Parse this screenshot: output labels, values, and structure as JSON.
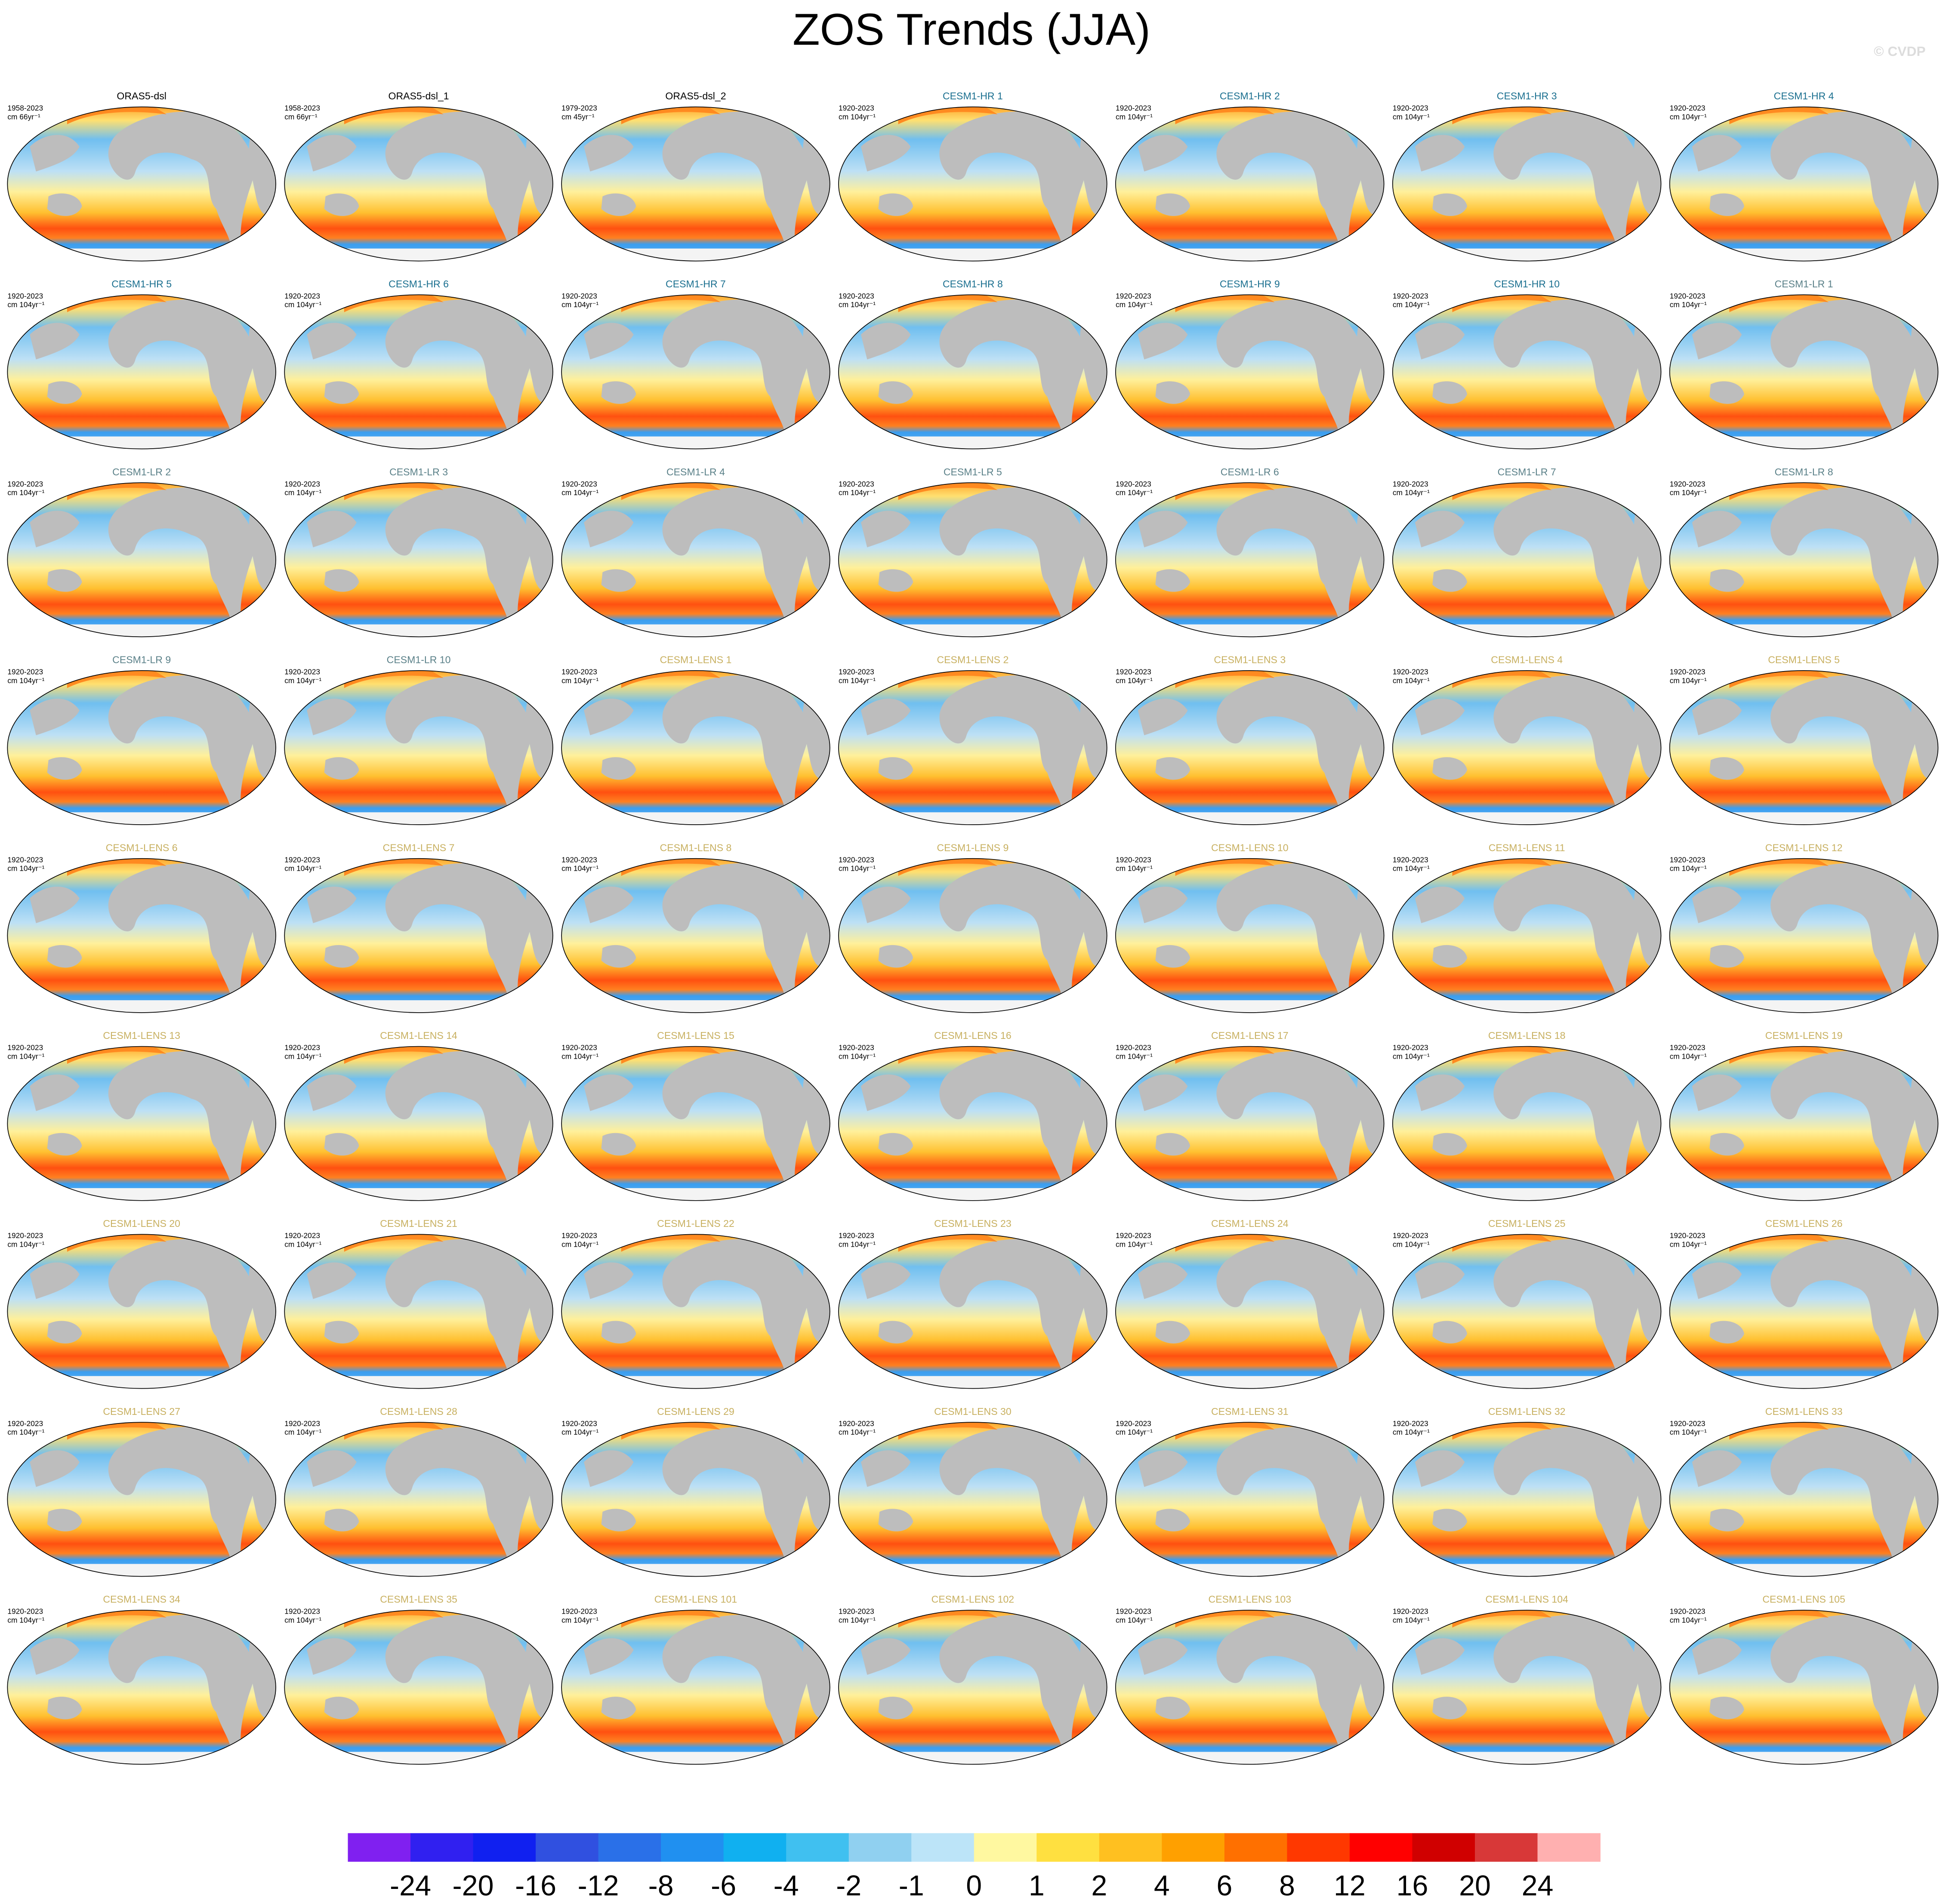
{
  "chart_data": {
    "type": "map-grid",
    "title": "ZOS Trends (JJA)",
    "watermark": "© CVDP",
    "panels": [
      {
        "name": "ORAS5-dsl",
        "period": "1958-2023",
        "units": "cm 66yr⁻¹",
        "color": "#000000"
      },
      {
        "name": "ORAS5-dsl_1",
        "period": "1958-2023",
        "units": "cm 66yr⁻¹",
        "color": "#000000"
      },
      {
        "name": "ORAS5-dsl_2",
        "period": "1979-2023",
        "units": "cm 45yr⁻¹",
        "color": "#000000"
      },
      {
        "name": "CESM1-HR 1",
        "period": "1920-2023",
        "units": "cm 104yr⁻¹",
        "color": "#1a6f8f"
      },
      {
        "name": "CESM1-HR 2",
        "period": "1920-2023",
        "units": "cm 104yr⁻¹",
        "color": "#1a6f8f"
      },
      {
        "name": "CESM1-HR 3",
        "period": "1920-2023",
        "units": "cm 104yr⁻¹",
        "color": "#1a6f8f"
      },
      {
        "name": "CESM1-HR 4",
        "period": "1920-2023",
        "units": "cm 104yr⁻¹",
        "color": "#1a6f8f"
      },
      {
        "name": "CESM1-HR 5",
        "period": "1920-2023",
        "units": "cm 104yr⁻¹",
        "color": "#1a6f8f"
      },
      {
        "name": "CESM1-HR 6",
        "period": "1920-2023",
        "units": "cm 104yr⁻¹",
        "color": "#1a6f8f"
      },
      {
        "name": "CESM1-HR 7",
        "period": "1920-2023",
        "units": "cm 104yr⁻¹",
        "color": "#1a6f8f"
      },
      {
        "name": "CESM1-HR 8",
        "period": "1920-2023",
        "units": "cm 104yr⁻¹",
        "color": "#1a6f8f"
      },
      {
        "name": "CESM1-HR 9",
        "period": "1920-2023",
        "units": "cm 104yr⁻¹",
        "color": "#1a6f8f"
      },
      {
        "name": "CESM1-HR 10",
        "period": "1920-2023",
        "units": "cm 104yr⁻¹",
        "color": "#1a6f8f"
      },
      {
        "name": "CESM1-LR 1",
        "period": "1920-2023",
        "units": "cm 104yr⁻¹",
        "color": "#5a8088"
      },
      {
        "name": "CESM1-LR 2",
        "period": "1920-2023",
        "units": "cm 104yr⁻¹",
        "color": "#5a8088"
      },
      {
        "name": "CESM1-LR 3",
        "period": "1920-2023",
        "units": "cm 104yr⁻¹",
        "color": "#5a8088"
      },
      {
        "name": "CESM1-LR 4",
        "period": "1920-2023",
        "units": "cm 104yr⁻¹",
        "color": "#5a8088"
      },
      {
        "name": "CESM1-LR 5",
        "period": "1920-2023",
        "units": "cm 104yr⁻¹",
        "color": "#5a8088"
      },
      {
        "name": "CESM1-LR 6",
        "period": "1920-2023",
        "units": "cm 104yr⁻¹",
        "color": "#5a8088"
      },
      {
        "name": "CESM1-LR 7",
        "period": "1920-2023",
        "units": "cm 104yr⁻¹",
        "color": "#5a8088"
      },
      {
        "name": "CESM1-LR 8",
        "period": "1920-2023",
        "units": "cm 104yr⁻¹",
        "color": "#5a8088"
      },
      {
        "name": "CESM1-LR 9",
        "period": "1920-2023",
        "units": "cm 104yr⁻¹",
        "color": "#5a8088"
      },
      {
        "name": "CESM1-LR 10",
        "period": "1920-2023",
        "units": "cm 104yr⁻¹",
        "color": "#5a8088"
      },
      {
        "name": "CESM1-LENS 1",
        "period": "1920-2023",
        "units": "cm 104yr⁻¹",
        "color": "#c8b060"
      },
      {
        "name": "CESM1-LENS 2",
        "period": "1920-2023",
        "units": "cm 104yr⁻¹",
        "color": "#c8b060"
      },
      {
        "name": "CESM1-LENS 3",
        "period": "1920-2023",
        "units": "cm 104yr⁻¹",
        "color": "#c8b060"
      },
      {
        "name": "CESM1-LENS 4",
        "period": "1920-2023",
        "units": "cm 104yr⁻¹",
        "color": "#c8b060"
      },
      {
        "name": "CESM1-LENS 5",
        "period": "1920-2023",
        "units": "cm 104yr⁻¹",
        "color": "#c8b060"
      },
      {
        "name": "CESM1-LENS 6",
        "period": "1920-2023",
        "units": "cm 104yr⁻¹",
        "color": "#c8b060"
      },
      {
        "name": "CESM1-LENS 7",
        "period": "1920-2023",
        "units": "cm 104yr⁻¹",
        "color": "#c8b060"
      },
      {
        "name": "CESM1-LENS 8",
        "period": "1920-2023",
        "units": "cm 104yr⁻¹",
        "color": "#c8b060"
      },
      {
        "name": "CESM1-LENS 9",
        "period": "1920-2023",
        "units": "cm 104yr⁻¹",
        "color": "#c8b060"
      },
      {
        "name": "CESM1-LENS 10",
        "period": "1920-2023",
        "units": "cm 104yr⁻¹",
        "color": "#c8b060"
      },
      {
        "name": "CESM1-LENS 11",
        "period": "1920-2023",
        "units": "cm 104yr⁻¹",
        "color": "#c8b060"
      },
      {
        "name": "CESM1-LENS 12",
        "period": "1920-2023",
        "units": "cm 104yr⁻¹",
        "color": "#c8b060"
      },
      {
        "name": "CESM1-LENS 13",
        "period": "1920-2023",
        "units": "cm 104yr⁻¹",
        "color": "#c8b060"
      },
      {
        "name": "CESM1-LENS 14",
        "period": "1920-2023",
        "units": "cm 104yr⁻¹",
        "color": "#c8b060"
      },
      {
        "name": "CESM1-LENS 15",
        "period": "1920-2023",
        "units": "cm 104yr⁻¹",
        "color": "#c8b060"
      },
      {
        "name": "CESM1-LENS 16",
        "period": "1920-2023",
        "units": "cm 104yr⁻¹",
        "color": "#c8b060"
      },
      {
        "name": "CESM1-LENS 17",
        "period": "1920-2023",
        "units": "cm 104yr⁻¹",
        "color": "#c8b060"
      },
      {
        "name": "CESM1-LENS 18",
        "period": "1920-2023",
        "units": "cm 104yr⁻¹",
        "color": "#c8b060"
      },
      {
        "name": "CESM1-LENS 19",
        "period": "1920-2023",
        "units": "cm 104yr⁻¹",
        "color": "#c8b060"
      },
      {
        "name": "CESM1-LENS 20",
        "period": "1920-2023",
        "units": "cm 104yr⁻¹",
        "color": "#c8b060"
      },
      {
        "name": "CESM1-LENS 21",
        "period": "1920-2023",
        "units": "cm 104yr⁻¹",
        "color": "#c8b060"
      },
      {
        "name": "CESM1-LENS 22",
        "period": "1920-2023",
        "units": "cm 104yr⁻¹",
        "color": "#c8b060"
      },
      {
        "name": "CESM1-LENS 23",
        "period": "1920-2023",
        "units": "cm 104yr⁻¹",
        "color": "#c8b060"
      },
      {
        "name": "CESM1-LENS 24",
        "period": "1920-2023",
        "units": "cm 104yr⁻¹",
        "color": "#c8b060"
      },
      {
        "name": "CESM1-LENS 25",
        "period": "1920-2023",
        "units": "cm 104yr⁻¹",
        "color": "#c8b060"
      },
      {
        "name": "CESM1-LENS 26",
        "period": "1920-2023",
        "units": "cm 104yr⁻¹",
        "color": "#c8b060"
      },
      {
        "name": "CESM1-LENS 27",
        "period": "1920-2023",
        "units": "cm 104yr⁻¹",
        "color": "#c8b060"
      },
      {
        "name": "CESM1-LENS 28",
        "period": "1920-2023",
        "units": "cm 104yr⁻¹",
        "color": "#c8b060"
      },
      {
        "name": "CESM1-LENS 29",
        "period": "1920-2023",
        "units": "cm 104yr⁻¹",
        "color": "#c8b060"
      },
      {
        "name": "CESM1-LENS 30",
        "period": "1920-2023",
        "units": "cm 104yr⁻¹",
        "color": "#c8b060"
      },
      {
        "name": "CESM1-LENS 31",
        "period": "1920-2023",
        "units": "cm 104yr⁻¹",
        "color": "#c8b060"
      },
      {
        "name": "CESM1-LENS 32",
        "period": "1920-2023",
        "units": "cm 104yr⁻¹",
        "color": "#c8b060"
      },
      {
        "name": "CESM1-LENS 33",
        "period": "1920-2023",
        "units": "cm 104yr⁻¹",
        "color": "#c8b060"
      },
      {
        "name": "CESM1-LENS 34",
        "period": "1920-2023",
        "units": "cm 104yr⁻¹",
        "color": "#c8b060"
      },
      {
        "name": "CESM1-LENS 35",
        "period": "1920-2023",
        "units": "cm 104yr⁻¹",
        "color": "#c8b060"
      },
      {
        "name": "CESM1-LENS 101",
        "period": "1920-2023",
        "units": "cm 104yr⁻¹",
        "color": "#c8b060"
      },
      {
        "name": "CESM1-LENS 102",
        "period": "1920-2023",
        "units": "cm 104yr⁻¹",
        "color": "#c8b060"
      },
      {
        "name": "CESM1-LENS 103",
        "period": "1920-2023",
        "units": "cm 104yr⁻¹",
        "color": "#c8b060"
      },
      {
        "name": "CESM1-LENS 104",
        "period": "1920-2023",
        "units": "cm 104yr⁻¹",
        "color": "#c8b060"
      },
      {
        "name": "CESM1-LENS 105",
        "period": "1920-2023",
        "units": "cm 104yr⁻¹",
        "color": "#c8b060"
      }
    ],
    "colorbar": {
      "levels": [
        -24,
        -20,
        -16,
        -12,
        -8,
        -6,
        -4,
        -2,
        -1,
        0,
        1,
        2,
        4,
        6,
        8,
        12,
        16,
        20,
        24
      ],
      "colors": [
        "#8020f0",
        "#3020f0",
        "#1020f0",
        "#3050e0",
        "#2a70e8",
        "#2090f0",
        "#10b0f0",
        "#40c0f0",
        "#90d0f0",
        "#bce4f8",
        "#fff8a0",
        "#ffe040",
        "#ffc020",
        "#ffa000",
        "#ff7000",
        "#ff3800",
        "#ff0000",
        "#d00000",
        "#d83838",
        "#ffb0b0"
      ]
    }
  }
}
